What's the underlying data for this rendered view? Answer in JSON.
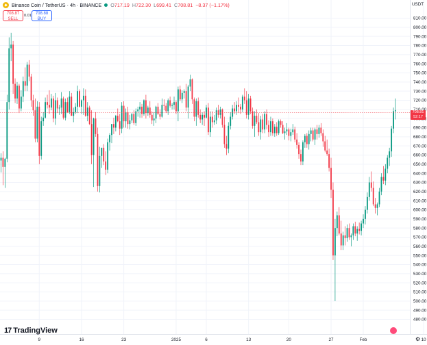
{
  "header": {
    "symbol": "Binance Coin / TetherUS · 4h · BINANCE",
    "o_label": "O",
    "o": "717.19",
    "h_label": "H",
    "h": "722.30",
    "l_label": "L",
    "l": "699.41",
    "c_label": "C",
    "c": "708.81",
    "change": "−8.37 (−1.17%)"
  },
  "trade": {
    "sell_price": "708.87",
    "sell_label": "SELL",
    "spread": "0.01",
    "buy_price": "708.88",
    "buy_label": "BUY"
  },
  "price_axis": {
    "currency": "USDT",
    "last_price": "708.81",
    "countdown": "52:17"
  },
  "brand": {
    "name": "TradingView"
  },
  "colors": {
    "up": "#089981",
    "down": "#f23645",
    "grid": "#f0f3fa"
  },
  "icons": {
    "symbol": "binance-coin-icon",
    "status": "market-open-dot-icon",
    "settings": "gear-icon"
  },
  "chart_data": {
    "type": "candlestick",
    "ylim": [
      470,
      820
    ],
    "yticks": [
      480,
      490,
      500,
      510,
      520,
      530,
      540,
      550,
      560,
      570,
      580,
      590,
      600,
      610,
      620,
      630,
      640,
      650,
      660,
      670,
      680,
      690,
      700,
      710,
      720,
      730,
      740,
      750,
      760,
      770,
      780,
      790,
      800,
      810
    ],
    "xticks": [
      {
        "label": "9",
        "index": 19
      },
      {
        "label": "16",
        "index": 40
      },
      {
        "label": "23",
        "index": 61
      },
      {
        "label": "2025",
        "index": 87
      },
      {
        "label": "6",
        "index": 102
      },
      {
        "label": "13",
        "index": 123
      },
      {
        "label": "20",
        "index": 143
      },
      {
        "label": "27",
        "index": 164
      },
      {
        "label": "Feb",
        "index": 180
      },
      {
        "label": "10",
        "index": 210
      }
    ],
    "ohlc": [
      [
        654,
        662,
        641,
        657
      ],
      [
        657,
        664,
        627,
        647
      ],
      [
        647,
        657,
        624,
        656
      ],
      [
        656,
        726,
        652,
        718
      ],
      [
        718,
        789,
        710,
        777
      ],
      [
        777,
        794,
        763,
        781
      ],
      [
        781,
        785,
        727,
        738
      ],
      [
        738,
        744,
        717,
        722
      ],
      [
        722,
        740,
        716,
        736
      ],
      [
        736,
        738,
        706,
        711
      ],
      [
        711,
        731,
        708,
        724
      ],
      [
        724,
        746,
        718,
        741
      ],
      [
        741,
        756,
        730,
        736
      ],
      [
        736,
        762,
        730,
        759
      ],
      [
        759,
        764,
        741,
        746
      ],
      [
        746,
        749,
        713,
        720
      ],
      [
        720,
        726,
        703,
        709
      ],
      [
        709,
        722,
        674,
        678
      ],
      [
        678,
        719,
        674,
        713
      ],
      [
        713,
        718,
        650,
        659
      ],
      [
        659,
        702,
        655,
        697
      ],
      [
        697,
        707,
        692,
        701
      ],
      [
        701,
        723,
        700,
        718
      ],
      [
        718,
        726,
        711,
        715
      ],
      [
        715,
        731,
        705,
        712
      ],
      [
        712,
        727,
        709,
        722
      ],
      [
        722,
        725,
        696,
        700
      ],
      [
        700,
        728,
        693,
        720
      ],
      [
        720,
        723,
        706,
        711
      ],
      [
        711,
        715,
        704,
        712
      ],
      [
        712,
        729,
        705,
        722
      ],
      [
        722,
        724,
        699,
        701
      ],
      [
        701,
        722,
        698,
        718
      ],
      [
        718,
        723,
        706,
        707
      ],
      [
        707,
        730,
        705,
        724
      ],
      [
        724,
        728,
        703,
        703
      ],
      [
        703,
        712,
        696,
        707
      ],
      [
        707,
        717,
        705,
        713
      ],
      [
        713,
        736,
        706,
        730
      ],
      [
        730,
        732,
        712,
        713
      ],
      [
        713,
        721,
        705,
        720
      ],
      [
        720,
        733,
        704,
        725
      ],
      [
        725,
        732,
        702,
        703
      ],
      [
        703,
        718,
        697,
        712
      ],
      [
        712,
        714,
        693,
        694
      ],
      [
        694,
        709,
        650,
        660
      ],
      [
        660,
        701,
        625,
        700
      ],
      [
        700,
        707,
        680,
        683
      ],
      [
        683,
        690,
        620,
        626
      ],
      [
        626,
        669,
        619,
        659
      ],
      [
        659,
        668,
        646,
        668
      ],
      [
        668,
        672,
        649,
        653
      ],
      [
        653,
        664,
        638,
        644
      ],
      [
        644,
        678,
        640,
        674
      ],
      [
        674,
        684,
        665,
        682
      ],
      [
        682,
        694,
        673,
        694
      ],
      [
        694,
        701,
        683,
        690
      ],
      [
        690,
        704,
        686,
        703
      ],
      [
        703,
        711,
        696,
        697
      ],
      [
        697,
        705,
        682,
        689
      ],
      [
        689,
        718,
        684,
        714
      ],
      [
        714,
        719,
        690,
        697
      ],
      [
        697,
        711,
        690,
        707
      ],
      [
        707,
        713,
        689,
        694
      ],
      [
        694,
        704,
        688,
        698
      ],
      [
        698,
        706,
        695,
        705
      ],
      [
        705,
        709,
        693,
        695
      ],
      [
        695,
        711,
        692,
        708
      ],
      [
        708,
        713,
        702,
        710
      ],
      [
        710,
        718,
        701,
        713
      ],
      [
        713,
        716,
        701,
        705
      ],
      [
        705,
        721,
        703,
        720
      ],
      [
        720,
        726,
        700,
        706
      ],
      [
        706,
        714,
        703,
        712
      ],
      [
        712,
        719,
        701,
        704
      ],
      [
        704,
        708,
        694,
        698
      ],
      [
        698,
        707,
        692,
        700
      ],
      [
        700,
        714,
        695,
        713
      ],
      [
        713,
        717,
        704,
        705
      ],
      [
        705,
        710,
        699,
        702
      ],
      [
        702,
        722,
        701,
        715
      ],
      [
        715,
        721,
        709,
        714
      ],
      [
        714,
        717,
        706,
        708
      ],
      [
        708,
        722,
        704,
        720
      ],
      [
        720,
        724,
        712,
        714
      ],
      [
        714,
        717,
        710,
        715
      ],
      [
        715,
        724,
        710,
        718
      ],
      [
        718,
        720,
        705,
        708
      ],
      [
        708,
        735,
        697,
        732
      ],
      [
        732,
        736,
        719,
        721
      ],
      [
        721,
        731,
        717,
        728
      ],
      [
        728,
        732,
        722,
        730
      ],
      [
        730,
        738,
        708,
        712
      ],
      [
        712,
        737,
        700,
        735
      ],
      [
        735,
        748,
        730,
        743
      ],
      [
        743,
        744,
        716,
        721
      ],
      [
        721,
        723,
        697,
        702
      ],
      [
        702,
        722,
        692,
        719
      ],
      [
        719,
        723,
        701,
        704
      ],
      [
        704,
        710,
        695,
        699
      ],
      [
        699,
        707,
        693,
        704
      ],
      [
        704,
        708,
        692,
        701
      ],
      [
        701,
        715,
        700,
        712
      ],
      [
        712,
        717,
        682,
        685
      ],
      [
        685,
        708,
        680,
        702
      ],
      [
        702,
        708,
        690,
        696
      ],
      [
        696,
        704,
        693,
        698
      ],
      [
        698,
        712,
        694,
        709
      ],
      [
        709,
        715,
        701,
        704
      ],
      [
        704,
        713,
        700,
        710
      ],
      [
        710,
        711,
        690,
        693
      ],
      [
        693,
        702,
        668,
        672
      ],
      [
        672,
        681,
        660,
        667
      ],
      [
        667,
        696,
        662,
        692
      ],
      [
        692,
        707,
        688,
        702
      ],
      [
        702,
        715,
        699,
        711
      ],
      [
        711,
        718,
        705,
        708
      ],
      [
        708,
        719,
        704,
        715
      ],
      [
        715,
        723,
        706,
        713
      ],
      [
        713,
        716,
        705,
        710
      ],
      [
        710,
        726,
        707,
        724
      ],
      [
        724,
        733,
        716,
        720
      ],
      [
        720,
        730,
        700,
        704
      ],
      [
        704,
        727,
        699,
        722
      ],
      [
        722,
        725,
        705,
        708
      ],
      [
        708,
        712,
        689,
        692
      ],
      [
        692,
        708,
        680,
        703
      ],
      [
        703,
        710,
        694,
        696
      ],
      [
        696,
        706,
        681,
        685
      ],
      [
        685,
        703,
        677,
        699
      ],
      [
        699,
        705,
        684,
        688
      ],
      [
        688,
        708,
        684,
        705
      ],
      [
        705,
        710,
        688,
        693
      ],
      [
        693,
        698,
        680,
        685
      ],
      [
        685,
        702,
        681,
        697
      ],
      [
        697,
        700,
        681,
        684
      ],
      [
        684,
        694,
        680,
        691
      ],
      [
        691,
        696,
        681,
        684
      ],
      [
        684,
        699,
        682,
        697
      ],
      [
        697,
        699,
        690,
        693
      ],
      [
        693,
        697,
        683,
        684
      ],
      [
        684,
        690,
        677,
        686
      ],
      [
        686,
        695,
        682,
        688
      ],
      [
        688,
        690,
        676,
        681
      ],
      [
        681,
        689,
        675,
        685
      ],
      [
        685,
        694,
        682,
        688
      ],
      [
        688,
        691,
        674,
        677
      ],
      [
        677,
        684,
        667,
        671
      ],
      [
        671,
        674,
        656,
        661
      ],
      [
        661,
        666,
        649,
        653
      ],
      [
        653,
        676,
        649,
        674
      ],
      [
        674,
        683,
        668,
        681
      ],
      [
        681,
        684,
        668,
        672
      ],
      [
        672,
        687,
        666,
        683
      ],
      [
        683,
        690,
        675,
        687
      ],
      [
        687,
        690,
        675,
        677
      ],
      [
        677,
        690,
        671,
        688
      ],
      [
        688,
        693,
        677,
        683
      ],
      [
        683,
        693,
        679,
        690
      ],
      [
        690,
        695,
        681,
        684
      ],
      [
        684,
        688,
        669,
        675
      ],
      [
        675,
        681,
        663,
        665
      ],
      [
        665,
        677,
        659,
        661
      ],
      [
        661,
        667,
        642,
        646
      ],
      [
        646,
        657,
        613,
        622
      ],
      [
        622,
        630,
        545,
        550
      ],
      [
        550,
        590,
        500,
        580
      ],
      [
        580,
        598,
        571,
        594
      ],
      [
        594,
        603,
        572,
        574
      ],
      [
        574,
        588,
        556,
        561
      ],
      [
        561,
        576,
        556,
        572
      ],
      [
        572,
        582,
        561,
        569
      ],
      [
        569,
        584,
        565,
        580
      ],
      [
        580,
        585,
        567,
        570
      ],
      [
        570,
        574,
        560,
        572
      ],
      [
        572,
        585,
        567,
        582
      ],
      [
        582,
        587,
        571,
        574
      ],
      [
        574,
        582,
        566,
        579
      ],
      [
        579,
        586,
        573,
        577
      ],
      [
        577,
        588,
        572,
        585
      ],
      [
        585,
        595,
        580,
        590
      ],
      [
        590,
        604,
        584,
        600
      ],
      [
        600,
        619,
        596,
        614
      ],
      [
        614,
        636,
        610,
        630
      ],
      [
        630,
        642,
        620,
        624
      ],
      [
        624,
        631,
        604,
        606
      ],
      [
        606,
        613,
        596,
        602
      ],
      [
        602,
        608,
        594,
        606
      ],
      [
        606,
        624,
        603,
        620
      ],
      [
        620,
        640,
        616,
        636
      ],
      [
        636,
        648,
        628,
        632
      ],
      [
        632,
        650,
        627,
        645
      ],
      [
        645,
        660,
        640,
        657
      ],
      [
        657,
        668,
        648,
        664
      ],
      [
        664,
        692,
        658,
        689
      ],
      [
        689,
        712,
        684,
        708
      ],
      [
        708,
        722,
        699,
        709
      ]
    ]
  }
}
